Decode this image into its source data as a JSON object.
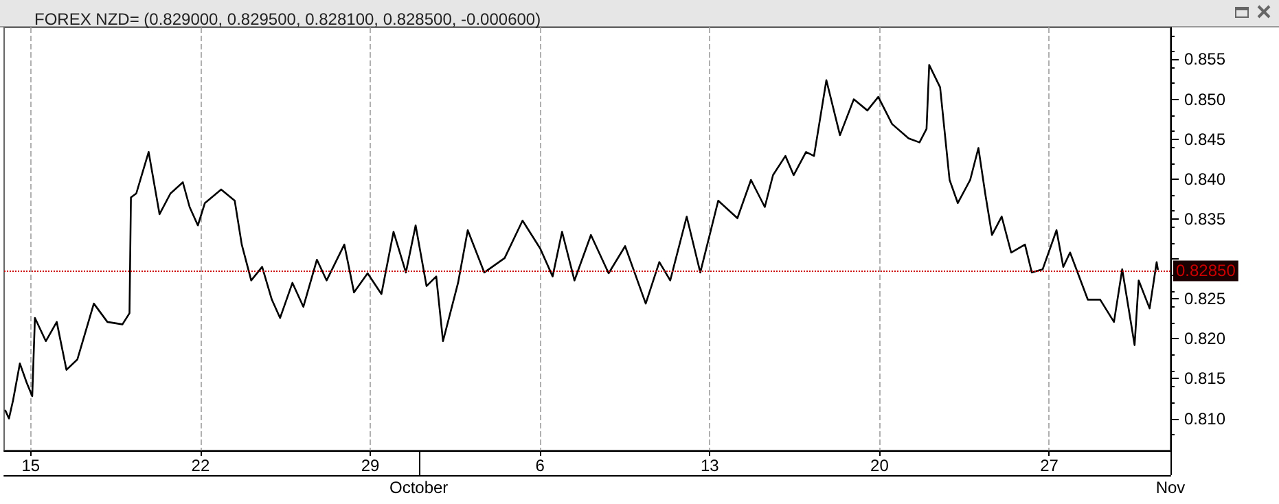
{
  "chart_data": {
    "type": "line",
    "title": "FOREX NZD= (0.829000, 0.829500, 0.828100, 0.828500, -0.000600)",
    "x": [
      "--09-13T22:48",
      "--09-14T02:24",
      "--09-14T06:29",
      "--09-14T13:12",
      "--09-14T19:55",
      "--09-15T01:26",
      "--09-15T04:05",
      "--09-15T14:53",
      "--09-16T01:41",
      "--09-16T11:17",
      "--09-16T22:05",
      "--09-17T14:24",
      "--09-18T03:50",
      "--09-18T18:43",
      "--09-19T01:41",
      "--09-19T03:07",
      "--09-19T08:24",
      "--09-19T20:38",
      "--09-20T07:26",
      "--09-20T18:14",
      "--09-21T06:29",
      "--09-21T13:12",
      "--09-21T21:22",
      "--09-22T04:19",
      "--09-22T20:24",
      "--09-23T09:50",
      "--09-23T16:48",
      "--09-24T02:10",
      "--09-24T12:58",
      "--09-24T22:34",
      "--09-25T06:43",
      "--09-25T18:58",
      "--09-26T05:46",
      "--09-26T19:12",
      "--09-27T04:48",
      "--09-27T22:19",
      "--09-28T07:55",
      "--09-28T21:22",
      "--09-29T11:02",
      "--09-29T23:02",
      "--09-30T11:17",
      "--09-30T20:53",
      "--10-01T07:41",
      "--10-01T17:17",
      "--10-02T00:00",
      "--10-02T14:53",
      "--10-03T00:29",
      "--10-03T16:48",
      "--10-04T12:58",
      "--10-05T06:43",
      "--10-06T00:14",
      "--10-06T12:29",
      "--10-06T21:50",
      "--10-07T10:05",
      "--10-08T02:24",
      "--10-08T19:55",
      "--10-09T12:14",
      "--10-10T08:38",
      "--10-10T22:05",
      "--10-11T08:53",
      "--10-12T01:12",
      "--10-12T14:38",
      "--10-13T08:24",
      "--10-14T03:22",
      "--10-14T16:48",
      "--10-15T06:29",
      "--10-15T14:38",
      "--10-16T02:53",
      "--10-16T11:02",
      "--10-16T23:17",
      "--10-17T07:12",
      "--10-17T19:26",
      "--10-18T08:53",
      "--10-18T22:34",
      "--10-19T12:00",
      "--10-19T22:48",
      "--10-20T12:29",
      "--10-21T04:48",
      "--10-21T15:36",
      "--10-21T22:34",
      "--10-22T01:12",
      "--10-22T12:00",
      "--10-22T21:22",
      "--10-23T05:31",
      "--10-23T17:46",
      "--10-24T01:55",
      "--10-24T08:38",
      "--10-24T15:22",
      "--10-25T00:58",
      "--10-25T10:19",
      "--10-26T00:00",
      "--10-26T06:43",
      "--10-26T17:31",
      "--10-27T07:12",
      "--10-27T13:55",
      "--10-27T20:38",
      "--10-28T14:10",
      "--10-29T02:24",
      "--10-29T16:05",
      "--10-30T00:14",
      "--10-30T12:29",
      "--10-30T16:34",
      "--10-31T03:22",
      "--10-31T10:19",
      "--10-31T11:31"
    ],
    "series": [
      {
        "color": "#000000",
        "values": [
          0.811,
          0.81,
          0.8123,
          0.8169,
          0.8145,
          0.8128,
          0.8226,
          0.8197,
          0.8221,
          0.8161,
          0.8174,
          0.8244,
          0.8221,
          0.8218,
          0.8232,
          0.8377,
          0.8382,
          0.8434,
          0.8356,
          0.8382,
          0.8396,
          0.8365,
          0.8342,
          0.837,
          0.8387,
          0.8373,
          0.8318,
          0.8273,
          0.829,
          0.8249,
          0.8226,
          0.827,
          0.824,
          0.8299,
          0.8273,
          0.8318,
          0.8258,
          0.8282,
          0.8256,
          0.8334,
          0.8283,
          0.8342,
          0.8266,
          0.8278,
          0.8197,
          0.827,
          0.8336,
          0.8283,
          0.8301,
          0.8348,
          0.8313,
          0.8278,
          0.8334,
          0.8273,
          0.833,
          0.8282,
          0.8316,
          0.8244,
          0.8296,
          0.8273,
          0.8353,
          0.8283,
          0.8373,
          0.8351,
          0.8399,
          0.8365,
          0.8405,
          0.8429,
          0.8405,
          0.8434,
          0.8429,
          0.8524,
          0.8455,
          0.85,
          0.8486,
          0.8503,
          0.8469,
          0.8451,
          0.8446,
          0.8463,
          0.8543,
          0.8515,
          0.8399,
          0.837,
          0.8399,
          0.8439,
          0.8382,
          0.833,
          0.8353,
          0.8308,
          0.8318,
          0.8283,
          0.8287,
          0.8336,
          0.829,
          0.8308,
          0.8249,
          0.8249,
          0.8221,
          0.8287,
          0.8192,
          0.8273,
          0.8238,
          0.8296,
          0.8287
        ]
      }
    ],
    "xlim": [
      "--09-13T21:36",
      "--11-01"
    ],
    "xticks": [
      {
        "value": "--09-15",
        "label": "15"
      },
      {
        "value": "--09-22",
        "label": "22"
      },
      {
        "value": "--09-29",
        "label": "29"
      },
      {
        "value": "--10-06",
        "label": "6"
      },
      {
        "value": "--10-13",
        "label": "13"
      },
      {
        "value": "--10-20",
        "label": "20"
      },
      {
        "value": "--10-27",
        "label": "27"
      }
    ],
    "x2lim": [
      "--09-13T21:36",
      "--11-01"
    ],
    "x2ticks": [
      {
        "value": "--10-01",
        "label": "October"
      },
      {
        "value": "--11-01",
        "label": "Nov"
      }
    ],
    "ylim": [
      0.806,
      0.859
    ],
    "yticks": [
      {
        "value": 0.81,
        "label": "0.810"
      },
      {
        "value": 0.815,
        "label": "0.815"
      },
      {
        "value": 0.82,
        "label": "0.820"
      },
      {
        "value": 0.825,
        "label": "0.825"
      },
      {
        "value": 0.83,
        "label": null
      },
      {
        "value": 0.835,
        "label": "0.835"
      },
      {
        "value": 0.84,
        "label": "0.840"
      },
      {
        "value": 0.845,
        "label": "0.845"
      },
      {
        "value": 0.85,
        "label": "0.850"
      },
      {
        "value": 0.855,
        "label": "0.855"
      }
    ],
    "ref_lines": [
      {
        "axis": "y",
        "value": 0.8285,
        "label": "0.82850",
        "color": "#cc0000"
      }
    ],
    "grid": "x",
    "marker": "none",
    "line_style": "solid"
  }
}
